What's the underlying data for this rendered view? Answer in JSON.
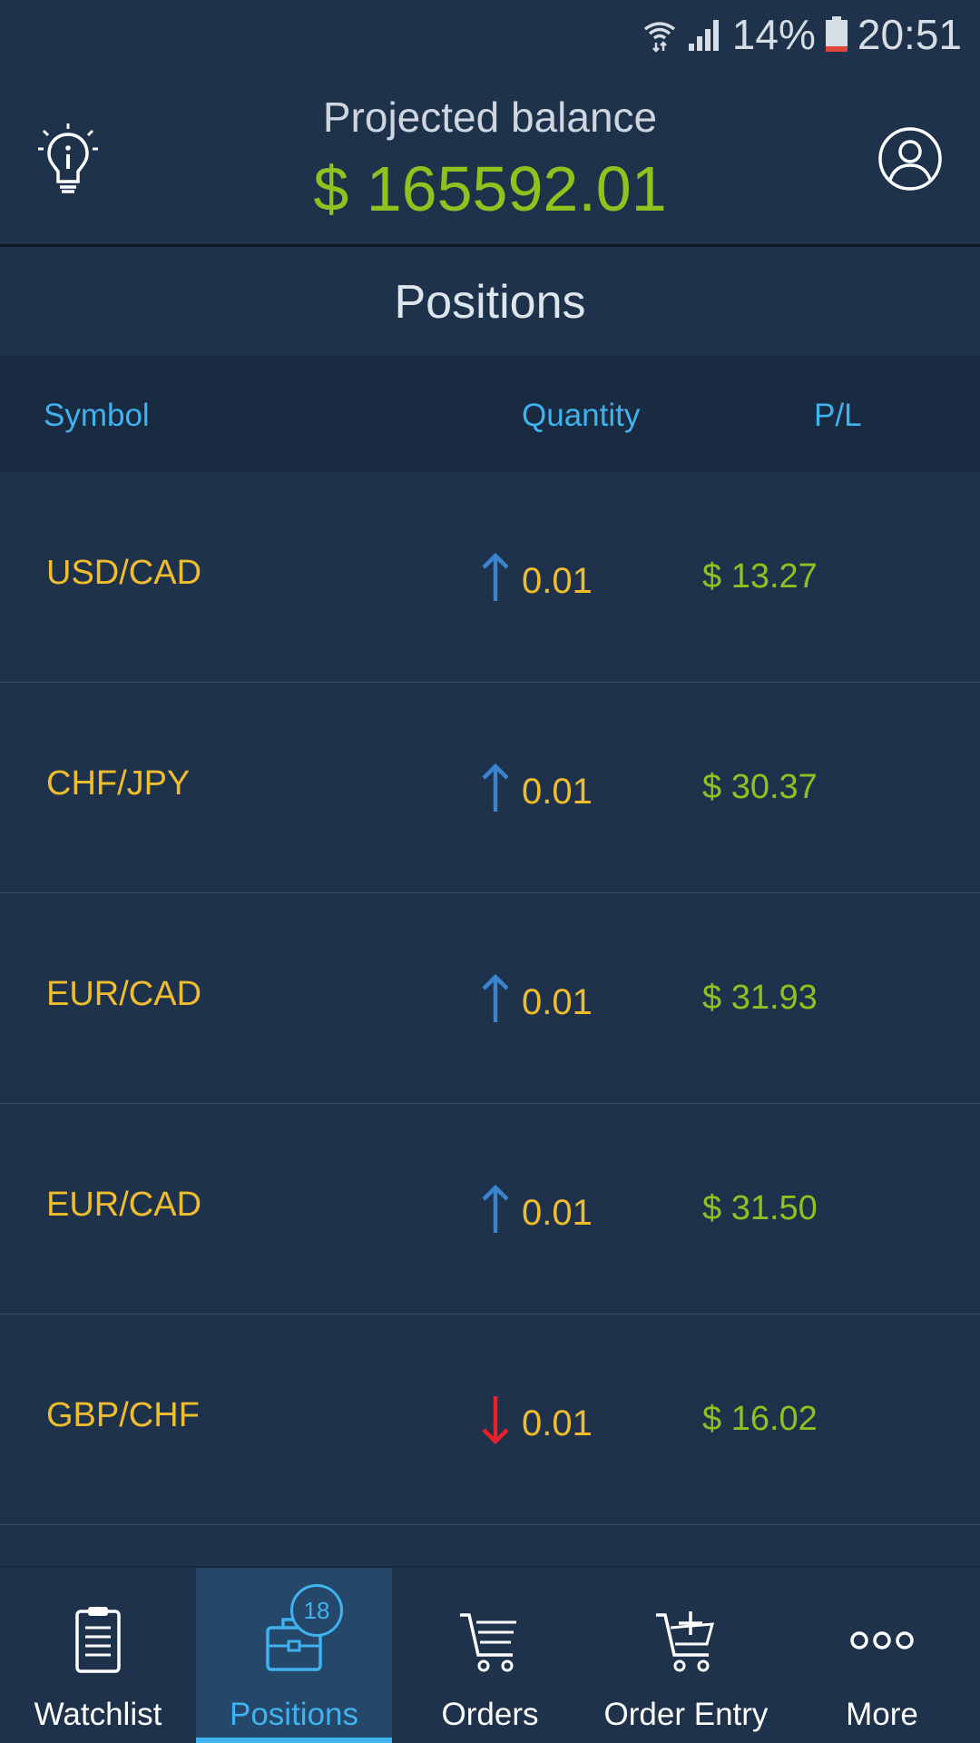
{
  "status_bar": {
    "battery": "14%",
    "time": "20:51"
  },
  "header": {
    "title": "Projected balance",
    "balance": "$ 165592.01",
    "hint_icon": "lightbulb-info-icon",
    "profile_icon": "user-circle-icon"
  },
  "section_title": "Positions",
  "table": {
    "columns": [
      "Symbol",
      "Quantity",
      "P/L"
    ],
    "rows": [
      {
        "symbol": "USD/CAD",
        "direction": "up",
        "quantity": "0.01",
        "pl": "$ 13.27"
      },
      {
        "symbol": "CHF/JPY",
        "direction": "up",
        "quantity": "0.01",
        "pl": "$ 30.37"
      },
      {
        "symbol": "EUR/CAD",
        "direction": "up",
        "quantity": "0.01",
        "pl": "$ 31.93"
      },
      {
        "symbol": "EUR/CAD",
        "direction": "up",
        "quantity": "0.01",
        "pl": "$ 31.50"
      },
      {
        "symbol": "GBP/CHF",
        "direction": "down",
        "quantity": "0.01",
        "pl": "$ 16.02"
      }
    ]
  },
  "bottom_nav": {
    "items": [
      {
        "label": "Watchlist",
        "icon": "clipboard-icon"
      },
      {
        "label": "Positions",
        "icon": "briefcase-icon",
        "badge": "18",
        "active": true
      },
      {
        "label": "Orders",
        "icon": "cart-list-icon"
      },
      {
        "label": "Order Entry",
        "icon": "cart-add-icon"
      },
      {
        "label": "More",
        "icon": "more-dots-icon"
      }
    ]
  },
  "colors": {
    "background": "#1e324b",
    "accent_blue": "#3fb2ef",
    "positive_green": "#8cc31e",
    "symbol_yellow": "#f0be2d",
    "up_arrow": "#3a84cf",
    "down_arrow": "#e8202a"
  }
}
